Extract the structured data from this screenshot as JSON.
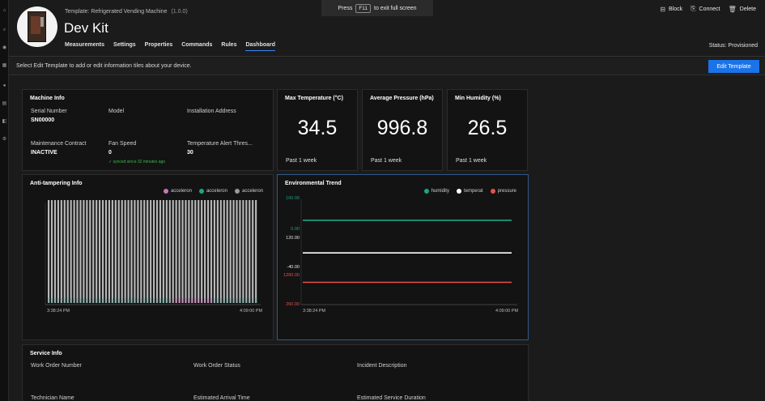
{
  "rail": {
    "icons": [
      "home-icon",
      "search-icon",
      "devices-icon",
      "dashboard-icon",
      "rules-icon",
      "analytics-icon",
      "jobs-icon",
      "settings-icon"
    ]
  },
  "header": {
    "template_prefix": "Template:",
    "template_name": "Refrigerated Vending Machine",
    "template_version": "(1.0.0)",
    "device_name": "Dev Kit",
    "status": "Status: Provisioned"
  },
  "tabs": [
    "Measurements",
    "Settings",
    "Properties",
    "Commands",
    "Rules",
    "Dashboard"
  ],
  "active_tab": "Dashboard",
  "fullscreen": {
    "press": "Press",
    "key": "F11",
    "suffix": "to exit full screen"
  },
  "actions": {
    "block": "Block",
    "connect": "Connect",
    "delete": "Delete"
  },
  "infobar": {
    "message": "Select Edit Template to add or edit information tiles about your device.",
    "button": "Edit Template"
  },
  "machine_info": {
    "title": "Machine Info",
    "serial_label": "Serial Number",
    "serial_value": "SN00000",
    "model_label": "Model",
    "install_label": "Installation Address",
    "contract_label": "Maintenance Contract",
    "contract_value": "INACTIVE",
    "fan_label": "Fan Speed",
    "fan_value": "0",
    "synced": "✓ synced since 32 minutes ago",
    "temp_alert_label": "Temperature Alert Thres...",
    "temp_alert_value": "30"
  },
  "kpis": [
    {
      "title": "Max Temperature (°C)",
      "value": "34.5",
      "foot": "Past 1 week"
    },
    {
      "title": "Average Pressure (hPa)",
      "value": "996.8",
      "foot": "Past 1 week"
    },
    {
      "title": "Min Humidity (%)",
      "value": "26.5",
      "foot": "Past 1 week"
    }
  ],
  "anti_tampering": {
    "title": "Anti-tampering Info",
    "legend": [
      {
        "name": "acceleron",
        "color": "#c678b8"
      },
      {
        "name": "acceleron",
        "color": "#1aa58a"
      },
      {
        "name": "acceleron",
        "color": "#9a9a9a"
      }
    ],
    "x_start": "3:38:24 PM",
    "x_end": "4:09:00 PM"
  },
  "environmental": {
    "title": "Environmental Trend",
    "legend": [
      {
        "name": "humidity",
        "color": "#1aa58a"
      },
      {
        "name": "temperat",
        "color": "#ffffff"
      },
      {
        "name": "pressure",
        "color": "#e5534b"
      }
    ],
    "ticks": [
      {
        "label": "100.00",
        "color": "#1aa58a"
      },
      {
        "label": "0.00",
        "color": "#1aa58a"
      },
      {
        "label": "120.00",
        "color": "#e8e8e8"
      },
      {
        "label": "-40.00",
        "color": "#e8e8e8"
      },
      {
        "label": "1260.00",
        "color": "#e5534b"
      },
      {
        "label": "260.00",
        "color": "#e5534b"
      }
    ],
    "x_start": "3:38:24 PM",
    "x_end": "4:09:00 PM"
  },
  "chart_data": {
    "type": "line",
    "title": "Environmental Trend",
    "x": [
      "3:38:24 PM",
      "4:09:00 PM"
    ],
    "series": [
      {
        "name": "humidity",
        "values": [
          26.5,
          26.5
        ],
        "ylim": [
          0,
          100
        ]
      },
      {
        "name": "temperat",
        "values": [
          34.5,
          34.5
        ],
        "ylim": [
          -40,
          120
        ]
      },
      {
        "name": "pressure",
        "values": [
          996.8,
          996.8
        ],
        "ylim": [
          260,
          1260
        ]
      }
    ],
    "legend": "top-right"
  },
  "service_info": {
    "title": "Service Info",
    "labels": [
      "Work Order Number",
      "Work Order Status",
      "Incident Description",
      "Technician Name",
      "Estimated Arrival Time",
      "Estimated Service Duration"
    ]
  }
}
